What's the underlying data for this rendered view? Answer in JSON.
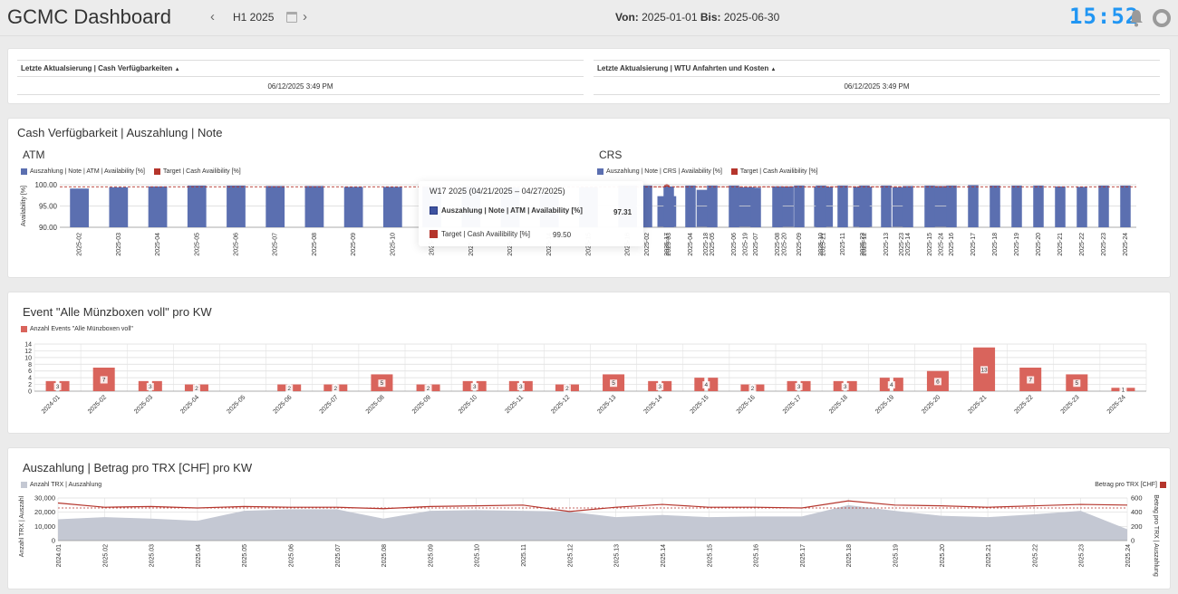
{
  "header": {
    "title": "GCMC Dashboard",
    "period": "H1 2025",
    "from_label": "Von:",
    "from_value": "2025-01-01",
    "to_label": "Bis:",
    "to_value": "2025-06-30",
    "clock": "15:52"
  },
  "updates": {
    "left_title": "Letzte Aktualsierung | Cash Verfügbarkeiten",
    "left_value": "06/12/2025 3:49 PM",
    "right_title": "Letzte Aktualsierung | WTU Anfahrten und Kosten",
    "right_value": "06/12/2025 3:49 PM",
    "sort_icon": "triangle-up"
  },
  "cash_panel": {
    "title": "Cash Verfügbarkeit | Auszahlung | Note",
    "atm_title": "ATM",
    "crs_title": "CRS",
    "atm_legend_series": "Auszahlung | Note | ATM | Availability [%]",
    "crs_legend_series": "Auszahlung | Note | CRS | Availability [%]",
    "legend_target": "Target | Cash Availibility [%]",
    "atm_ylabel": "Availability [%]"
  },
  "tooltip": {
    "title": "W17 2025 (04/21/2025 – 04/27/2025)",
    "series_label": "Auszahlung | Note | ATM | Availability [%]",
    "series_value": "97.31",
    "target_label": "Target | Cash Availibility [%]",
    "target_value": "99.50"
  },
  "events_panel": {
    "title": "Event \"Alle Münzboxen voll\" pro KW",
    "legend": "Anzahl Events \"Alle Münzboxen voll\""
  },
  "payout_panel": {
    "title": "Auszahlung | Betrag pro TRX [CHF] pro KW",
    "legend_left": "Anzahl TRX | Auszahlung",
    "legend_right": "Betrag pro TRX [CHF]",
    "ylabel_left": "Anzahl TRX | Auszahl",
    "ylabel_right": "Betrag pro TRX | Auszahlung"
  },
  "colors": {
    "bar_blue": "#5b6fb0",
    "target_red": "#b5352c",
    "event_red": "#d9645c",
    "area_grey": "#c4c8d3",
    "line_red": "#b5352c",
    "clock_blue": "#2196f3"
  },
  "chart_data": [
    {
      "id": "atm",
      "type": "bar",
      "categories": [
        "2025-02",
        "2025-03",
        "2025-04",
        "2025-05",
        "2025-06",
        "2025-07",
        "2025-08",
        "2025-09",
        "2025-10",
        "2025-11",
        "2025-12",
        "2025-13",
        "2025-14",
        "2025-15",
        "2025-16",
        "2025-17",
        "2025-18",
        "2025-19",
        "2025-20",
        "2025-21",
        "2025-22",
        "2025-23",
        "2025-24"
      ],
      "series": [
        {
          "name": "Auszahlung | Note | ATM | Availability [%]",
          "values": [
            99.1,
            99.4,
            99.6,
            99.8,
            99.8,
            99.7,
            99.7,
            99.5,
            99.5,
            99.6,
            99.7,
            99.3,
            98.2,
            99.4,
            99.8,
            97.31,
            98.8,
            99.4,
            99.6,
            99.5,
            99.5,
            99.4,
            99.7
          ]
        },
        {
          "name": "Target | Cash Availibility [%]",
          "values": [
            99.5,
            99.5,
            99.5,
            99.5,
            99.5,
            99.5,
            99.5,
            99.5,
            99.5,
            99.5,
            99.5,
            99.5,
            99.5,
            99.5,
            99.5,
            99.5,
            99.5,
            99.5,
            99.5,
            99.5,
            99.5,
            99.5,
            99.5
          ]
        }
      ],
      "ylabel": "Availability [%]",
      "ylim": [
        90,
        100
      ],
      "yticks": [
        "100.00",
        "95.00",
        "90.00"
      ],
      "highlighted_category": "2025-17"
    },
    {
      "id": "crs",
      "type": "bar",
      "categories": [
        "2025-02",
        "2025-03",
        "2025-04",
        "2025-05",
        "2025-06",
        "2025-07",
        "2025-08",
        "2025-09",
        "2025-10",
        "2025-11",
        "2025-12",
        "2025-13",
        "2025-14",
        "2025-15",
        "2025-16",
        "2025-17",
        "2025-18",
        "2025-19",
        "2025-20",
        "2025-21",
        "2025-22",
        "2025-23",
        "2025-24"
      ],
      "series": [
        {
          "name": "Auszahlung | Note | CRS | Availability [%]",
          "values": [
            99.8,
            99.6,
            99.8,
            99.8,
            99.8,
            99.3,
            99.6,
            99.8,
            99.8,
            99.8,
            99.8,
            99.8,
            99.7,
            99.8,
            99.8,
            99.9,
            99.8,
            99.8,
            99.8,
            99.6,
            99.5,
            99.8,
            99.8
          ]
        },
        {
          "name": "Target | Cash Availibility [%]",
          "values": [
            99.5,
            99.5,
            99.5,
            99.5,
            99.5,
            99.5,
            99.5,
            99.5,
            99.5,
            99.5,
            99.5,
            99.5,
            99.5,
            99.5,
            99.5,
            99.5,
            99.5,
            99.5,
            99.5,
            99.5,
            99.5,
            99.5,
            99.5
          ]
        }
      ],
      "ylim": [
        90,
        100
      ]
    },
    {
      "id": "events",
      "type": "bar",
      "categories": [
        "2024-01",
        "2025-02",
        "2025-03",
        "2025-04",
        "2025-05",
        "2025-06",
        "2025-07",
        "2025-08",
        "2025-09",
        "2025-10",
        "2025-11",
        "2025-12",
        "2025-13",
        "2025-14",
        "2025-15",
        "2025-16",
        "2025-17",
        "2025-18",
        "2025-19",
        "2025-20",
        "2025-21",
        "2025-22",
        "2025-23",
        "2025-24"
      ],
      "series": [
        {
          "name": "Anzahl Events \"Alle Münzboxen voll\"",
          "values": [
            3,
            7,
            3,
            2,
            0,
            2,
            2,
            5,
            2,
            3,
            3,
            2,
            5,
            3,
            4,
            2,
            3,
            3,
            4,
            6,
            13,
            7,
            5,
            1
          ]
        }
      ],
      "ylim": [
        0,
        14
      ],
      "yticks": [
        "14",
        "12",
        "10",
        "8",
        "6",
        "4",
        "2",
        "0"
      ]
    },
    {
      "id": "payout",
      "type": "area+line",
      "categories": [
        "2024.01",
        "2025.02",
        "2025.03",
        "2025.04",
        "2025.05",
        "2025.06",
        "2025.07",
        "2025.08",
        "2025.09",
        "2025.10",
        "2025.11",
        "2025.12",
        "2025.13",
        "2025.14",
        "2025.15",
        "2025.16",
        "2025.17",
        "2025.18",
        "2025.19",
        "2025.20",
        "2025.21",
        "2025.22",
        "2025.23",
        "2025.24"
      ],
      "series": [
        {
          "name": "Anzahl TRX | Auszahlung",
          "axis": "left",
          "values": [
            15000,
            16500,
            15500,
            14000,
            21000,
            22000,
            22000,
            15500,
            21000,
            21500,
            21000,
            20500,
            16500,
            18000,
            16500,
            17000,
            17000,
            25000,
            21000,
            17500,
            16500,
            18500,
            21000,
            8000
          ]
        },
        {
          "name": "Betrag pro TRX [CHF]",
          "axis": "right",
          "values": [
            530,
            470,
            480,
            460,
            480,
            470,
            470,
            450,
            480,
            490,
            500,
            410,
            470,
            510,
            470,
            470,
            460,
            560,
            500,
            490,
            470,
            490,
            510,
            500
          ]
        }
      ],
      "ylim_left": [
        0,
        30000
      ],
      "yticks_left": [
        "30,000",
        "20,000",
        "10,000",
        "0"
      ],
      "ylim_right": [
        0,
        600
      ],
      "yticks_right": [
        "600",
        "400",
        "200",
        "0"
      ],
      "target_line_right": 460
    }
  ]
}
